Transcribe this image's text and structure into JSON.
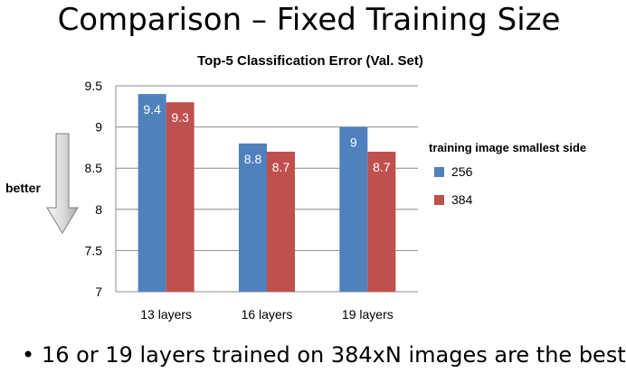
{
  "slide": {
    "title": "Comparison – Fixed Training Size",
    "bullet": "16 or 19 layers trained on 384xN images are the best"
  },
  "annotation": {
    "label": "better",
    "icon": "down-arrow-icon"
  },
  "chart_data": {
    "type": "bar",
    "title": "Top-5 Classification Error (Val. Set)",
    "xlabel": "",
    "ylabel": "",
    "categories": [
      "13 layers",
      "16 layers",
      "19 layers"
    ],
    "series": [
      {
        "name": "256",
        "values": [
          9.4,
          8.8,
          9
        ],
        "labels": [
          "9.4",
          "8.8",
          "9"
        ],
        "color": "#4F81BD"
      },
      {
        "name": "384",
        "values": [
          9.3,
          8.7,
          8.7
        ],
        "labels": [
          "9.3",
          "8.7",
          "8.7"
        ],
        "color": "#C0504D"
      }
    ],
    "ylim": [
      7,
      9.5
    ],
    "yticks": [
      7,
      7.5,
      8,
      8.5,
      9,
      9.5
    ],
    "ytick_labels": [
      "7",
      "7.5",
      "8",
      "8.5",
      "9",
      "9.5"
    ],
    "grid": true,
    "legend": {
      "title": "training image smallest side",
      "position": "right"
    }
  }
}
